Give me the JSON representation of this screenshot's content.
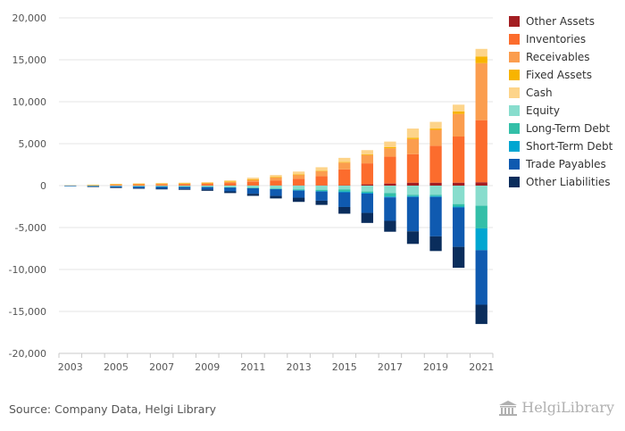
{
  "chart_data": {
    "type": "bar",
    "stacked": true,
    "x": [
      2003,
      2004,
      2005,
      2006,
      2007,
      2008,
      2009,
      2010,
      2011,
      2012,
      2013,
      2014,
      2015,
      2016,
      2017,
      2018,
      2019,
      2020,
      2021
    ],
    "xticks": [
      "2003",
      "2005",
      "2007",
      "2009",
      "2011",
      "2013",
      "2015",
      "2017",
      "2019",
      "2021"
    ],
    "ylim": [
      -20000,
      20000
    ],
    "yticks": [
      "20,000",
      "15,000",
      "10,000",
      "5,000",
      "0",
      "-5,000",
      "-10,000",
      "-15,000",
      "-20,000"
    ],
    "grid": true,
    "legend_position": "right",
    "series": [
      {
        "name": "Other Assets",
        "color": "#a31e22",
        "values": [
          0,
          0,
          5,
          5,
          5,
          5,
          5,
          10,
          15,
          20,
          25,
          30,
          40,
          150,
          250,
          350,
          350,
          350,
          400
        ]
      },
      {
        "name": "Inventories",
        "color": "#fc6c2d",
        "values": [
          10,
          40,
          80,
          120,
          130,
          150,
          200,
          300,
          450,
          600,
          800,
          1100,
          1900,
          2500,
          3200,
          3400,
          4400,
          5500,
          7400
        ]
      },
      {
        "name": "Receivables",
        "color": "#fb9d4e",
        "values": [
          10,
          40,
          70,
          90,
          100,
          100,
          120,
          150,
          250,
          350,
          450,
          600,
          800,
          1000,
          1000,
          1800,
          1900,
          2700,
          6800
        ]
      },
      {
        "name": "Fixed Assets",
        "color": "#f8b400",
        "values": [
          0,
          10,
          10,
          15,
          15,
          15,
          15,
          20,
          30,
          40,
          50,
          60,
          70,
          80,
          150,
          150,
          150,
          300,
          800
        ]
      },
      {
        "name": "Cash",
        "color": "#fdd48a",
        "values": [
          5,
          20,
          50,
          60,
          70,
          80,
          80,
          150,
          200,
          250,
          350,
          400,
          500,
          500,
          650,
          1100,
          800,
          800,
          900
        ]
      },
      {
        "name": "Equity",
        "color": "#88ddcd",
        "values": [
          -20,
          -50,
          -80,
          -100,
          -100,
          -130,
          -150,
          -200,
          -250,
          -350,
          -450,
          -500,
          -450,
          -700,
          -900,
          -1100,
          -1100,
          -2200,
          -2400
        ]
      },
      {
        "name": "Long-Term Debt",
        "color": "#33bfa8",
        "values": [
          0,
          0,
          0,
          -10,
          -20,
          -20,
          -20,
          -30,
          -50,
          -50,
          -100,
          -150,
          -250,
          -150,
          -400,
          -150,
          -150,
          -300,
          -2700
        ]
      },
      {
        "name": "Short-Term Debt",
        "color": "#00a6d1",
        "values": [
          0,
          0,
          0,
          0,
          0,
          0,
          0,
          -10,
          -20,
          -30,
          -40,
          -50,
          -100,
          -100,
          -100,
          -100,
          -100,
          -100,
          -2600
        ]
      },
      {
        "name": "Trade Payables",
        "color": "#0f5ab0",
        "values": [
          -5,
          -50,
          -150,
          -200,
          -250,
          -250,
          -300,
          -450,
          -650,
          -800,
          -850,
          -1100,
          -1750,
          -2300,
          -2800,
          -4100,
          -4700,
          -4700,
          -6500
        ]
      },
      {
        "name": "Other Liabilities",
        "color": "#0a2d5c",
        "values": [
          0,
          -10,
          -50,
          -60,
          -80,
          -100,
          -150,
          -200,
          -250,
          -300,
          -500,
          -500,
          -800,
          -1200,
          -1300,
          -1500,
          -1750,
          -2500,
          -2300
        ]
      }
    ]
  },
  "source": "Source: Company Data, Helgi Library",
  "logo": {
    "text": "HelgiLibrary",
    "icon": "library-building-icon"
  }
}
